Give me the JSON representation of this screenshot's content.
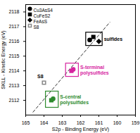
{
  "chart_data": {
    "type": "scatter",
    "xlabel": "S2p - Binding Energy (eV)",
    "ylabel": "SKLL - Kinetic Energy (eV)",
    "xlim": [
      165,
      159
    ],
    "ylim": [
      2111,
      2118.5
    ],
    "xticks": [
      165,
      164,
      163,
      162,
      161,
      160,
      159
    ],
    "yticks": [
      2112,
      2113,
      2114,
      2115,
      2116,
      2117,
      2118
    ],
    "legend": "top-left",
    "series": [
      {
        "name": "Cu3AsS4",
        "marker": "circle",
        "color": "#000000",
        "x": [
          161.5,
          162.4,
          163.5
        ],
        "y": [
          2116.1,
          2114.1,
          2112.1
        ],
        "colors": [
          "#000000",
          "#d6249f",
          "#2e8b2e"
        ]
      },
      {
        "name": "CuFeS2",
        "marker": "square",
        "color": "#000000",
        "x": [
          161.3,
          162.5,
          163.6
        ],
        "y": [
          2116.3,
          2114.0,
          2112.0
        ],
        "colors": [
          "#000000",
          "#d6249f",
          "#2e8b2e"
        ]
      },
      {
        "name": "FeAsS",
        "marker": "diamond",
        "color": "#000000",
        "x": [
          161.0
        ],
        "y": [
          2116.0
        ],
        "colors": [
          "#000000"
        ]
      },
      {
        "name": "S8",
        "marker": "square",
        "color": "#888888",
        "x": [
          164.0
        ],
        "y": [
          2113.2
        ],
        "colors": [
          "#888888"
        ]
      }
    ],
    "annotations": [
      {
        "text": "sulfides",
        "color": "#000000",
        "x": [
          161.7,
          160.8
        ],
        "y": [
          2115.7,
          2116.6
        ]
      },
      {
        "text": "S-terminal\npolysulfides",
        "color": "#d6249f",
        "x": [
          162.8,
          162.1
        ],
        "y": [
          2113.6,
          2114.5
        ]
      },
      {
        "text": "S-central\npolysulfides",
        "color": "#2e8b2e",
        "x": [
          163.9,
          163.2
        ],
        "y": [
          2111.5,
          2112.6
        ]
      },
      {
        "text": "S8",
        "color": "#000000",
        "x": [
          164.2,
          164.2
        ],
        "y": [
          2113.6,
          2113.6
        ]
      }
    ],
    "line": {
      "x": [
        164.6,
        160.4
      ],
      "y": [
        2111.2,
        2117.3
      ],
      "line_style": "dashed",
      "color": "#333333"
    }
  }
}
